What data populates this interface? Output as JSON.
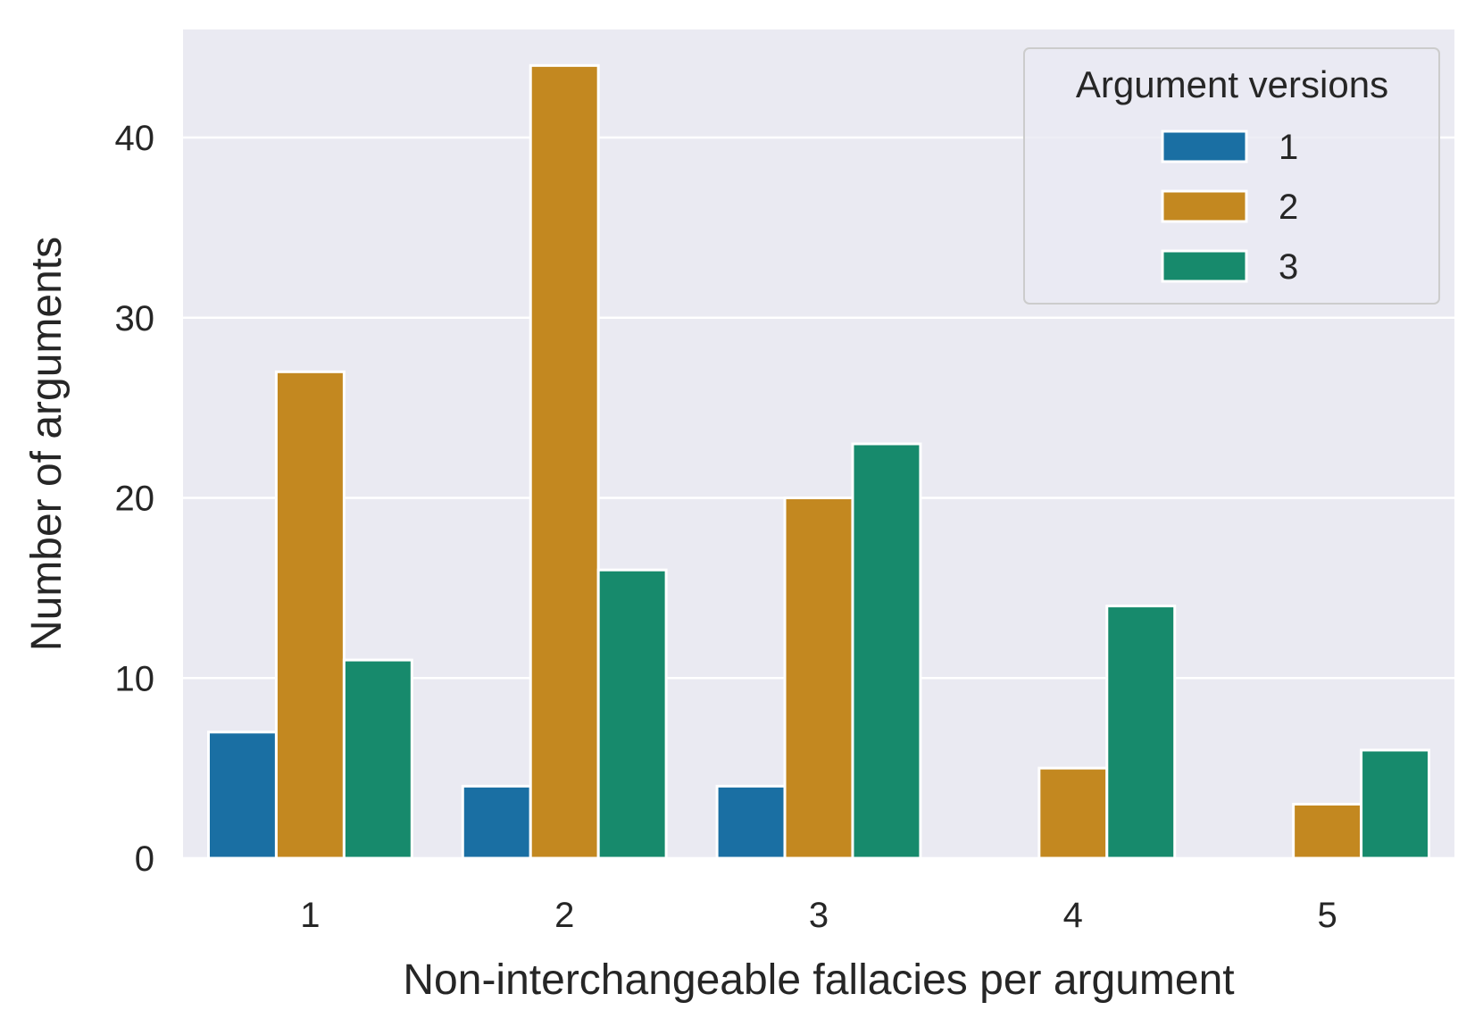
{
  "chart_data": {
    "type": "bar",
    "categories": [
      "1",
      "2",
      "3",
      "4",
      "5"
    ],
    "series": [
      {
        "name": "1",
        "values": [
          7,
          4,
          4,
          0,
          0
        ],
        "color": "#1a6fa3"
      },
      {
        "name": "2",
        "values": [
          27,
          44,
          20,
          5,
          3
        ],
        "color": "#c38820"
      },
      {
        "name": "3",
        "values": [
          11,
          16,
          23,
          14,
          6
        ],
        "color": "#178a6c"
      }
    ],
    "xlabel": "Non-interchangeable fallacies per argument",
    "ylabel": "Number of arguments",
    "ylim": [
      0,
      46
    ],
    "yticks": [
      0,
      10,
      20,
      30,
      40
    ],
    "legend": {
      "title": "Argument versions",
      "position": "top-right"
    },
    "grid": true,
    "plot_background": "#eaeaf2",
    "grid_color": "#ffffff"
  }
}
